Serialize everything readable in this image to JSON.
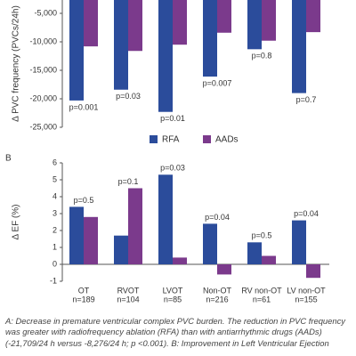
{
  "chart_data": [
    {
      "type": "bar",
      "ylabel": "Δ PVC frequency (PVCs/24h)",
      "ylim": [
        -25000,
        0
      ],
      "yticks": [
        {
          "value": -5000,
          "label": "-5,000"
        },
        {
          "value": -10000,
          "label": "-10,000"
        },
        {
          "value": -15000,
          "label": "-15,000"
        },
        {
          "value": -20000,
          "label": "-20,000"
        },
        {
          "value": -25000,
          "label": "-25,000"
        }
      ],
      "series": [
        {
          "name": "RFA",
          "color": "#2b4c9b",
          "values": [
            -20300,
            -18400,
            -22300,
            -16100,
            -11300,
            -19000
          ]
        },
        {
          "name": "AADs",
          "color": "#7b3a8c",
          "values": [
            -10800,
            -11600,
            -10500,
            -8400,
            -9800,
            -8300
          ]
        }
      ],
      "p_values": [
        "p=0.001",
        "p=0.03",
        "p=0.01",
        "p=0.007",
        "p=0.8",
        "p=0.7"
      ]
    },
    {
      "type": "bar",
      "panel_label": "B",
      "ylabel": "Δ EF (%)",
      "ylim": [
        -1,
        6
      ],
      "yticks": [
        6,
        5,
        4,
        3,
        2,
        1,
        0,
        -1
      ],
      "categories": [
        "OT",
        "RVOT",
        "LVOT",
        "Non-OT",
        "RV non-OT",
        "LV non-OT"
      ],
      "n_labels": [
        "n=189",
        "n=104",
        "n=85",
        "n=216",
        "n=61",
        "n=155"
      ],
      "series": [
        {
          "color": "#2b4c9b",
          "values": [
            3.4,
            1.7,
            5.3,
            2.4,
            1.3,
            2.6
          ]
        },
        {
          "color": "#7b3a8c",
          "values": [
            2.8,
            4.5,
            0.4,
            -0.6,
            0.5,
            -0.8
          ]
        }
      ],
      "p_values": [
        "p=0.5",
        "p=0.1",
        "p=0.03",
        "p=0.04",
        "p=0.5",
        "p=0.04"
      ]
    }
  ],
  "caption": [
    "A: Decrease in premature ventricular complex PVC burden. The reduction in PVC frequency",
    "was greater with radiofrequency ablation (RFA) than with antiarrhythmic drugs (AADs)",
    "(-21,709/24 h versus -8,276/24 h; p <0.001). B: Improvement in Left Ventricular Ejection"
  ]
}
